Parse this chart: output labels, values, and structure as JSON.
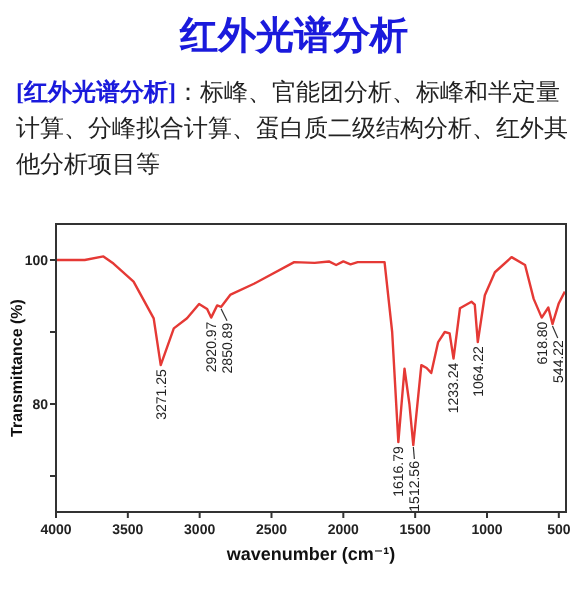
{
  "chart_data": {
    "type": "line",
    "title": "红外光谱分析",
    "subtitle": "[红外光谱分析]：标峰、官能团分析、标峰和半定量计算、分峰拟合计算、蛋白质二级结构分析、红外其他分析项目等",
    "xlabel": "wavenumber (cm⁻¹)",
    "ylabel": "Transmittance (%)",
    "xlim": [
      4000,
      450
    ],
    "ylim": [
      65,
      105
    ],
    "xticks": [
      4000,
      3500,
      3000,
      2500,
      2000,
      1500,
      1000,
      500
    ],
    "yticks": [
      100,
      {
        "value": 90,
        "label": null
      },
      80,
      {
        "value": 70,
        "label": null
      }
    ],
    "grid": false,
    "marker": "none",
    "line_style": "solid",
    "series": [
      {
        "color": "#e53935",
        "x": [
          4000,
          3800,
          3670,
          3600,
          3460,
          3320,
          3271,
          3180,
          3088,
          3004,
          2948,
          2920,
          2878,
          2850,
          2785,
          2622,
          2342,
          2200,
          2100,
          2050,
          2000,
          1950,
          1900,
          1800,
          1713,
          1660,
          1617,
          1574,
          1540,
          1513,
          1457,
          1420,
          1388,
          1340,
          1294,
          1260,
          1233,
          1188,
          1108,
          1085,
          1064,
          1015,
          945,
          829,
          735,
          675,
          619,
          573,
          544,
          500,
          458
        ],
        "values": [
          100,
          100,
          100.5,
          99.5,
          97,
          91.9,
          85.4,
          90.5,
          91.9,
          93.9,
          93.2,
          92.0,
          93.7,
          93.5,
          95.2,
          96.7,
          99.7,
          99.6,
          99.8,
          99.3,
          99.8,
          99.4,
          99.7,
          99.7,
          99.7,
          90,
          74.7,
          84.9,
          80,
          74.3,
          85.4,
          85,
          84.3,
          88.6,
          90.0,
          89.8,
          86.3,
          93.3,
          94.2,
          93.8,
          88.6,
          95.1,
          98.3,
          100.4,
          99.3,
          94.6,
          92.0,
          93.4,
          91.1,
          94,
          95.6
        ]
      }
    ],
    "annotations": [
      {
        "text": "3271.25",
        "x": 3271.25,
        "y": 85.4
      },
      {
        "text": "2920.97",
        "x": 2920.97,
        "y": 92.0
      },
      {
        "text": "2850.89",
        "x": 2850.89,
        "y": 93.5
      },
      {
        "text": "1616.79",
        "x": 1616.79,
        "y": 74.7
      },
      {
        "text": "1512.56",
        "x": 1512.56,
        "y": 74.3
      },
      {
        "text": "1233.24",
        "x": 1233.24,
        "y": 86.3
      },
      {
        "text": "1064.22",
        "x": 1064.22,
        "y": 88.6
      },
      {
        "text": "618.80",
        "x": 618.8,
        "y": 92.0
      },
      {
        "text": "544.22",
        "x": 544.22,
        "y": 91.1
      }
    ]
  }
}
